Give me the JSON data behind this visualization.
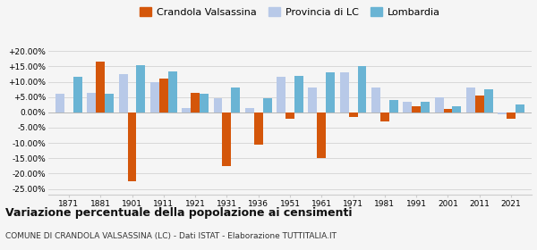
{
  "years": [
    1871,
    1881,
    1901,
    1911,
    1921,
    1931,
    1936,
    1951,
    1961,
    1971,
    1981,
    1991,
    2001,
    2011,
    2021
  ],
  "crandola": [
    null,
    16.5,
    -22.5,
    11.0,
    6.5,
    -17.5,
    -10.5,
    -2.0,
    -15.0,
    -1.5,
    -3.0,
    2.0,
    1.0,
    5.5,
    -2.0
  ],
  "provincia": [
    6.0,
    6.5,
    12.5,
    10.0,
    1.5,
    4.5,
    1.5,
    11.5,
    8.0,
    13.0,
    8.0,
    3.5,
    5.0,
    8.0,
    -0.5
  ],
  "lombardia": [
    11.5,
    6.0,
    15.5,
    13.5,
    6.0,
    8.0,
    4.5,
    12.0,
    13.0,
    15.0,
    4.0,
    3.5,
    2.0,
    7.5,
    2.5
  ],
  "color_crandola": "#d4560a",
  "color_provincia": "#b8c9e8",
  "color_lombardia": "#6ab4d4",
  "title": "Variazione percentuale della popolazione ai censimenti",
  "subtitle": "COMUNE DI CRANDOLA VALSASSINA (LC) - Dati ISTAT - Elaborazione TUTTITALIA.IT",
  "legend_labels": [
    "Crandola Valsassina",
    "Provincia di LC",
    "Lombardia"
  ],
  "ylim": [
    -27,
    22
  ],
  "yticks": [
    -25,
    -20,
    -15,
    -10,
    -5,
    0,
    5,
    10,
    15,
    20
  ],
  "background_color": "#f5f5f5",
  "bar_width": 0.28
}
